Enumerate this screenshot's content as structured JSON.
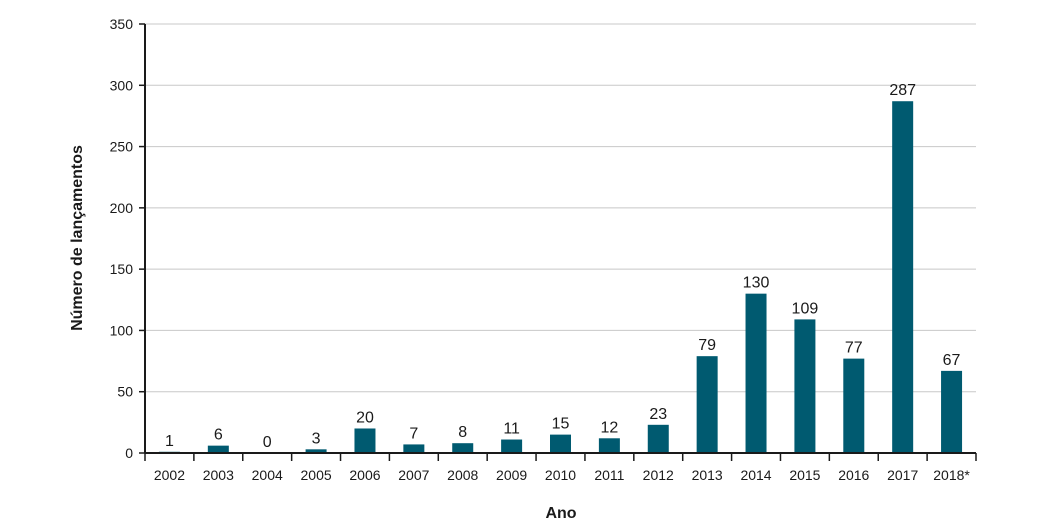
{
  "chart_data": {
    "type": "bar",
    "categories": [
      "2002",
      "2003",
      "2004",
      "2005",
      "2006",
      "2007",
      "2008",
      "2009",
      "2010",
      "2011",
      "2012",
      "2013",
      "2014",
      "2015",
      "2016",
      "2017",
      "2018*"
    ],
    "values": [
      1,
      6,
      0,
      3,
      20,
      7,
      8,
      11,
      15,
      12,
      23,
      79,
      130,
      109,
      77,
      287,
      67
    ],
    "data_labels": [
      "1",
      "6",
      "0",
      "3",
      "20",
      "7",
      "8",
      "11",
      "15",
      "12",
      "23",
      "79",
      "130",
      "109",
      "77",
      "287",
      "67"
    ],
    "xlabel": "Ano",
    "ylabel": "Número de lançamentos",
    "ylim": [
      0,
      350
    ],
    "yticks": [
      0,
      50,
      100,
      150,
      200,
      250,
      300,
      350
    ],
    "ytick_labels": [
      "0",
      "50",
      "100",
      "150",
      "200",
      "250",
      "300",
      "350"
    ],
    "grid": true,
    "bar_color": "#005a70",
    "grid_color": "#c8c8c8",
    "axis_color": "#1a1a1a"
  }
}
